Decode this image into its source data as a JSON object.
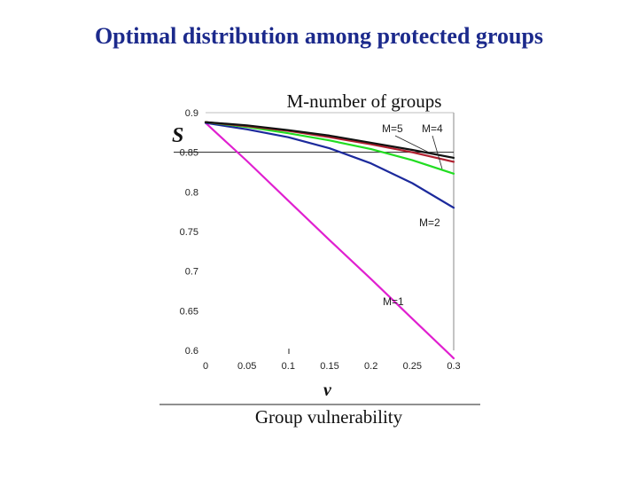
{
  "slide": {
    "title": "Optimal distribution among protected groups",
    "subtitle": "M-number of groups",
    "caption": "Group vulnerability"
  },
  "chart_data": {
    "type": "line",
    "ylabel": "S",
    "xlabel": "v",
    "xlim": [
      0,
      0.3
    ],
    "ylim": [
      0.6,
      0.9
    ],
    "x_ticks": [
      "0",
      "0.05",
      "0.1",
      "0.15",
      "0.2",
      "0.25",
      "0.3"
    ],
    "y_ticks": [
      "0.9",
      "0.85",
      "0.8",
      "0.75",
      "0.7",
      "0.65",
      "0.6"
    ],
    "reference_line_y": 0.85,
    "grid": false,
    "series": [
      {
        "name": "M=1",
        "color": "#e020d0",
        "x": [
          0,
          0.05,
          0.1,
          0.15,
          0.2,
          0.25,
          0.3
        ],
        "y": [
          0.887,
          0.839,
          0.789,
          0.739,
          0.69,
          0.64,
          0.59
        ]
      },
      {
        "name": "M=2",
        "color": "#1c2a9c",
        "x": [
          0,
          0.05,
          0.1,
          0.15,
          0.2,
          0.25,
          0.3
        ],
        "y": [
          0.887,
          0.879,
          0.869,
          0.855,
          0.836,
          0.811,
          0.78
        ]
      },
      {
        "name": "",
        "color": "#22dd22",
        "x": [
          0,
          0.05,
          0.1,
          0.15,
          0.2,
          0.25,
          0.3
        ],
        "y": [
          0.888,
          0.882,
          0.874,
          0.865,
          0.854,
          0.84,
          0.823
        ]
      },
      {
        "name": "M=4",
        "color": "#b02030",
        "x": [
          0,
          0.05,
          0.1,
          0.15,
          0.2,
          0.25,
          0.3
        ],
        "y": [
          0.888,
          0.883,
          0.877,
          0.869,
          0.86,
          0.85,
          0.838
        ]
      },
      {
        "name": "M=5",
        "color": "#111111",
        "x": [
          0,
          0.05,
          0.1,
          0.15,
          0.2,
          0.25,
          0.3
        ],
        "y": [
          0.888,
          0.884,
          0.878,
          0.871,
          0.862,
          0.853,
          0.843
        ]
      }
    ],
    "annotations": [
      {
        "text": "M=5",
        "series": "M=5",
        "x": 0.3
      },
      {
        "text": "M=4",
        "series": "M=4",
        "x": 0.3
      },
      {
        "text": "M=2",
        "series": "M=2",
        "x": 0.3
      },
      {
        "text": "M=1",
        "series": "M=1",
        "x": 0.3
      }
    ]
  }
}
